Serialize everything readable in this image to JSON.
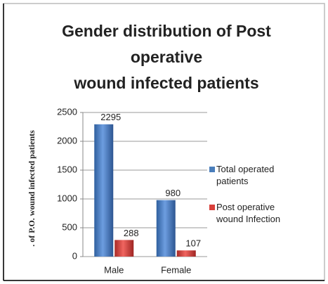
{
  "chart_data": {
    "type": "bar",
    "title": [
      "Gender distribution of Post",
      "operative",
      "wound infected patients"
    ],
    "ylabel": ". of P.O. wound infected patients",
    "categories": [
      "Male",
      "Female"
    ],
    "series": [
      {
        "name": "Total operated patients",
        "color": "#4a7ebb",
        "values": [
          2295,
          980
        ]
      },
      {
        "name": "Post operative wound Infection",
        "color": "#d9403b",
        "values": [
          288,
          107
        ]
      }
    ],
    "ylim": [
      0,
      2500
    ],
    "yticks": [
      0,
      500,
      1000,
      1500,
      2000,
      2500
    ],
    "grid": true,
    "legend": "right"
  }
}
